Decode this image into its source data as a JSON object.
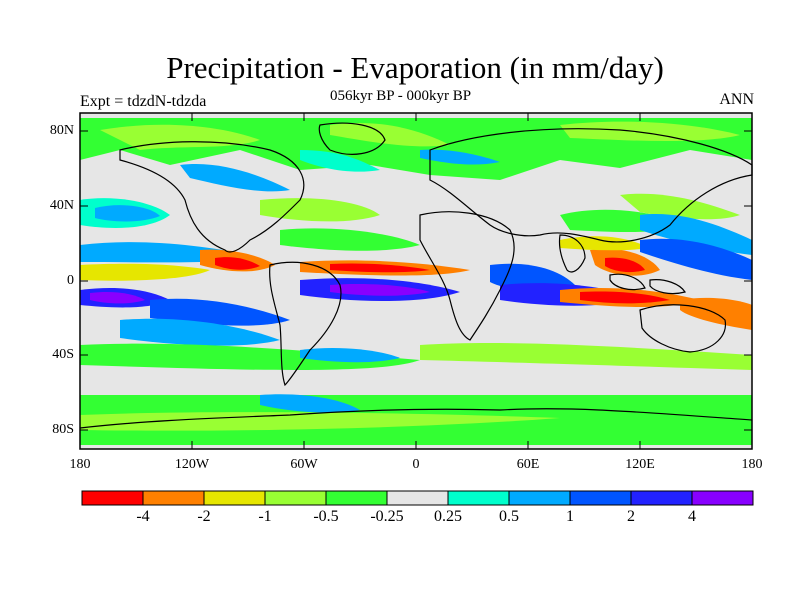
{
  "title": "Precipitation - Evaporation (in mm/day)",
  "subtitle": "056kyr BP - 000kyr BP",
  "left_label": "Expt = tdzdN-tdzda",
  "right_label": "ANN",
  "lat_ticks": [
    "80N",
    "40N",
    "0",
    "40S",
    "80S"
  ],
  "lon_ticks": [
    "180",
    "120W",
    "60W",
    "0",
    "60E",
    "120E",
    "180"
  ],
  "colorbar": {
    "colors": [
      "#ff0000",
      "#ff8000",
      "#e6e600",
      "#99ff33",
      "#33ff33",
      "#e6e6e6",
      "#00ffcc",
      "#00aaff",
      "#0055ff",
      "#2222ff",
      "#8800ff"
    ],
    "labels": [
      "-4",
      "-2",
      "-1",
      "-0.5",
      "-0.25",
      "0.25",
      "0.5",
      "1",
      "2",
      "4"
    ]
  }
}
